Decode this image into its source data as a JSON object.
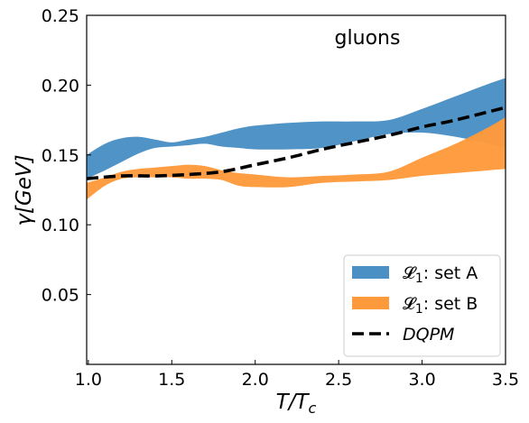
{
  "chart_data": {
    "type": "area",
    "annotation": "gluons",
    "xlabel": "T/T_c",
    "ylabel": "γ[GeV]",
    "xlim": [
      0.99,
      3.5
    ],
    "ylim": [
      0.0,
      0.25
    ],
    "x_ticks": [
      1.0,
      1.5,
      2.0,
      2.5,
      3.0,
      3.5
    ],
    "x_tick_labels": [
      "1.0",
      "1.5",
      "2.0",
      "2.5",
      "3.0",
      "3.5"
    ],
    "y_ticks": [
      0.05,
      0.1,
      0.15,
      0.2,
      0.25
    ],
    "y_tick_labels": [
      "0.05",
      "0.10",
      "0.15",
      "0.20",
      "0.25"
    ],
    "grid": false,
    "legend_position": "lower-right",
    "series": [
      {
        "name": "𝓛₁: set A",
        "legend_main": "𝓛",
        "legend_sub": "1",
        "legend_rest": ": set A",
        "kind": "band",
        "color": "#4a90c4",
        "x": [
          0.99,
          1.1,
          1.2,
          1.3,
          1.4,
          1.5,
          1.6,
          1.7,
          1.8,
          1.9,
          2.0,
          2.2,
          2.4,
          2.6,
          2.8,
          3.0,
          3.2,
          3.4,
          3.5
        ],
        "lower": [
          0.133,
          0.139,
          0.145,
          0.151,
          0.155,
          0.156,
          0.157,
          0.158,
          0.156,
          0.155,
          0.154,
          0.154,
          0.155,
          0.16,
          0.165,
          0.166,
          0.163,
          0.158,
          0.155
        ],
        "upper": [
          0.15,
          0.158,
          0.162,
          0.163,
          0.161,
          0.159,
          0.161,
          0.163,
          0.166,
          0.169,
          0.171,
          0.173,
          0.174,
          0.174,
          0.175,
          0.183,
          0.192,
          0.201,
          0.205
        ]
      },
      {
        "name": "𝓛₁: set B",
        "legend_main": "𝓛",
        "legend_sub": "1",
        "legend_rest": ": set B",
        "kind": "band",
        "color": "#ff9a3c",
        "x": [
          0.99,
          1.1,
          1.2,
          1.3,
          1.4,
          1.5,
          1.6,
          1.7,
          1.8,
          1.9,
          2.0,
          2.2,
          2.4,
          2.6,
          2.8,
          3.0,
          3.2,
          3.4,
          3.5
        ],
        "lower": [
          0.118,
          0.128,
          0.133,
          0.134,
          0.134,
          0.134,
          0.133,
          0.133,
          0.132,
          0.128,
          0.127,
          0.127,
          0.13,
          0.131,
          0.132,
          0.135,
          0.137,
          0.139,
          0.14
        ],
        "upper": [
          0.13,
          0.134,
          0.138,
          0.14,
          0.141,
          0.142,
          0.143,
          0.142,
          0.139,
          0.137,
          0.136,
          0.134,
          0.135,
          0.136,
          0.138,
          0.148,
          0.158,
          0.17,
          0.177
        ]
      },
      {
        "name": "DQPM",
        "kind": "line",
        "style": "dashed",
        "color": "#000000",
        "x": [
          0.99,
          1.2,
          1.4,
          1.6,
          1.8,
          2.0,
          2.2,
          2.4,
          2.6,
          2.8,
          3.0,
          3.2,
          3.5
        ],
        "values": [
          0.133,
          0.135,
          0.135,
          0.136,
          0.138,
          0.143,
          0.148,
          0.154,
          0.159,
          0.164,
          0.17,
          0.175,
          0.184
        ]
      }
    ]
  }
}
